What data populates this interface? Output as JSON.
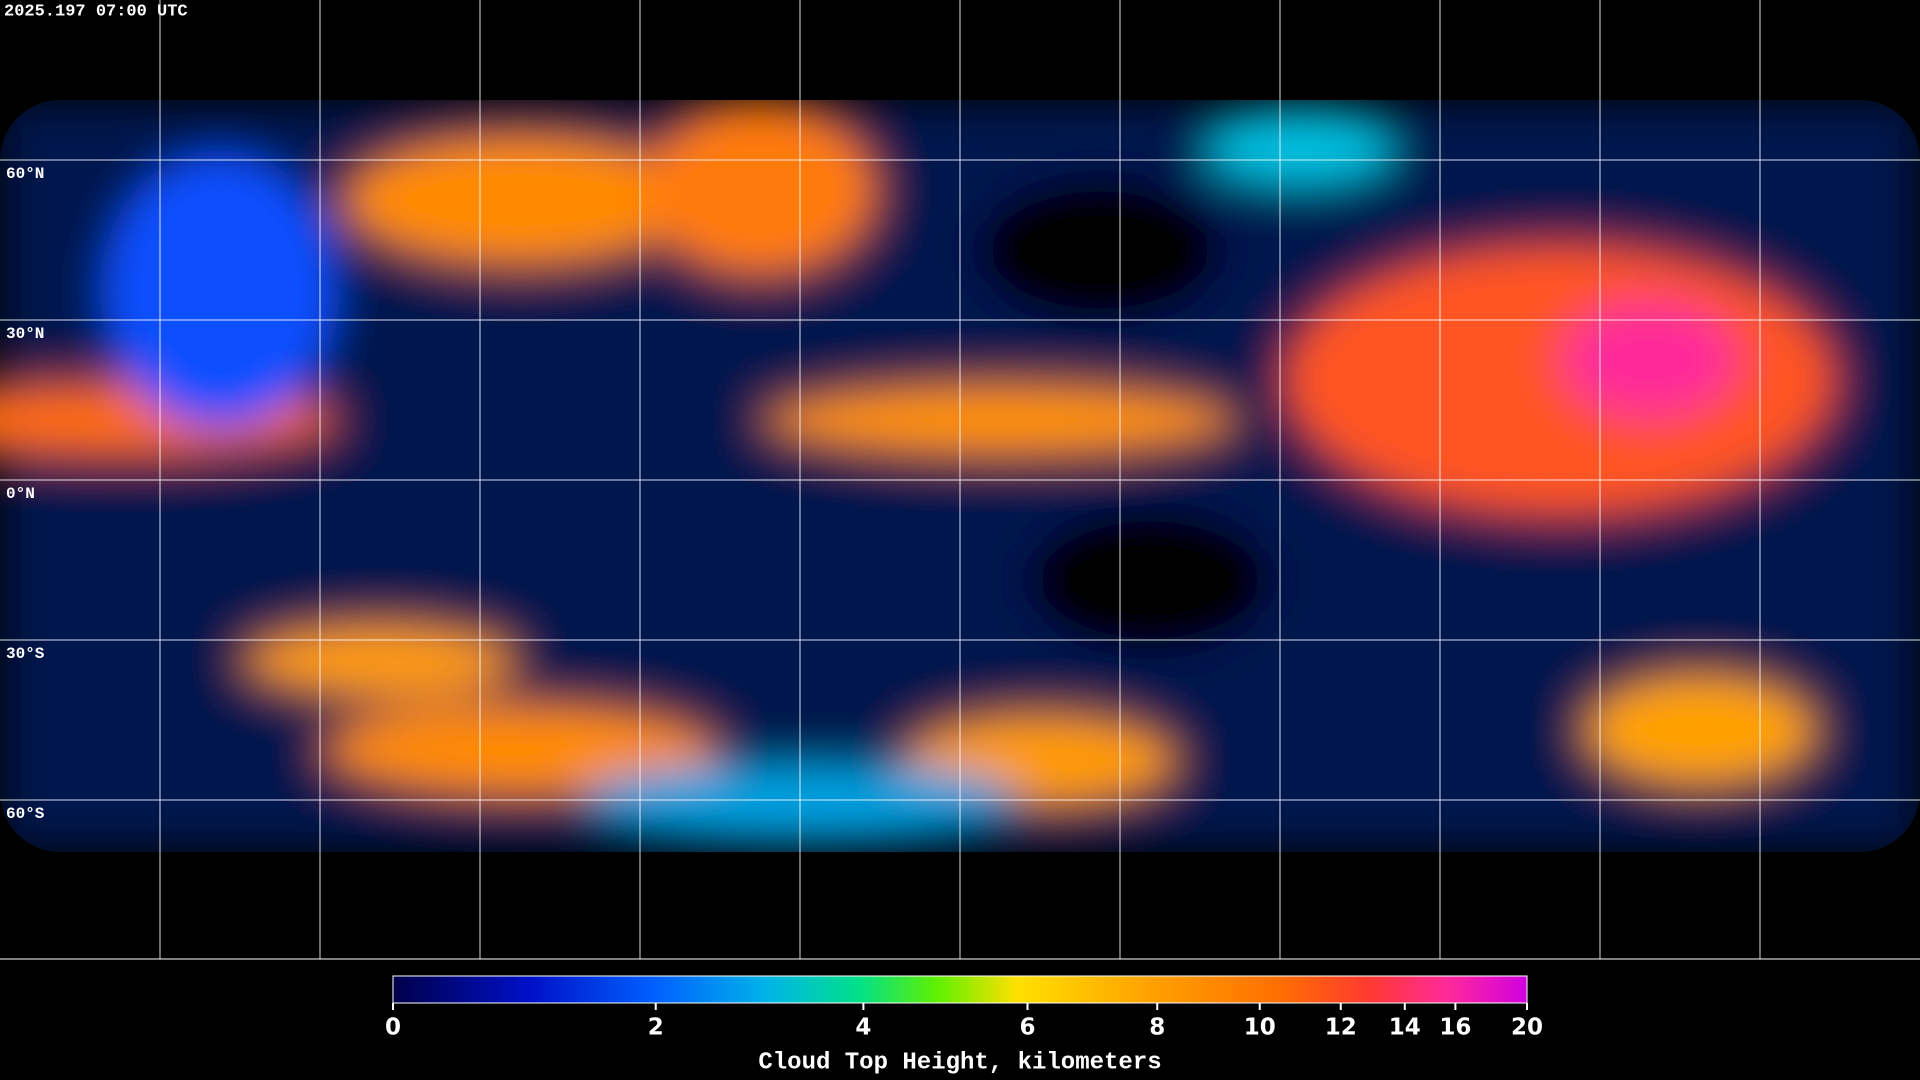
{
  "header": {
    "timestamp": "2025.197 07:00 UTC"
  },
  "map": {
    "latitude_labels": [
      "60°N",
      "30°N",
      "0°N",
      "30°S",
      "60°S"
    ]
  },
  "colorbar": {
    "title": "Cloud Top Height, kilometers",
    "lim": [
      0,
      20
    ],
    "ticks": [
      0,
      2,
      4,
      6,
      8,
      10,
      12,
      14,
      16,
      20
    ]
  }
}
